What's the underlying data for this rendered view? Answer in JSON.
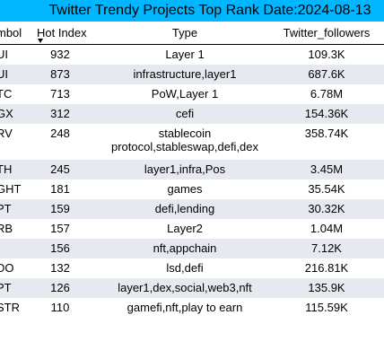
{
  "title": "Twitter Trendy Projects Top Rank Date:2024-08-13",
  "columns": {
    "symbol": "mbol",
    "hot_index": "Hot Index",
    "type": "Type",
    "followers": "Twitter_followers"
  },
  "rows": [
    {
      "symbol": "UI",
      "hot_index": "932",
      "type": "Layer 1",
      "type2": "",
      "followers": "109.3K"
    },
    {
      "symbol": "UI",
      "hot_index": "873",
      "type": "infrastructure,layer1",
      "type2": "",
      "followers": "687.6K"
    },
    {
      "symbol": "TC",
      "hot_index": "713",
      "type": "PoW,Layer 1",
      "type2": "",
      "followers": "6.78M"
    },
    {
      "symbol": "GX",
      "hot_index": "312",
      "type": "cefi",
      "type2": "",
      "followers": "154.36K"
    },
    {
      "symbol": "RV",
      "hot_index": "248",
      "type": "stablecoin",
      "type2": "protocol,stableswap,defi,dex",
      "followers": "358.74K"
    },
    {
      "symbol": "TH",
      "hot_index": "245",
      "type": "layer1,infra,Pos",
      "type2": "",
      "followers": "3.45M"
    },
    {
      "symbol": "GHT",
      "hot_index": "181",
      "type": "games",
      "type2": "",
      "followers": "35.54K"
    },
    {
      "symbol": "PT",
      "hot_index": "159",
      "type": "defi,lending",
      "type2": "",
      "followers": "30.32K"
    },
    {
      "symbol": "RB",
      "hot_index": "157",
      "type": "Layer2",
      "type2": "",
      "followers": "1.04M"
    },
    {
      "symbol": "",
      "hot_index": "156",
      "type": "nft,appchain",
      "type2": "",
      "followers": "7.12K"
    },
    {
      "symbol": "DO",
      "hot_index": "132",
      "type": "lsd,defi",
      "type2": "",
      "followers": "216.81K"
    },
    {
      "symbol": "PT",
      "hot_index": "126",
      "type": "layer1,dex,social,web3,nft",
      "type2": "",
      "followers": "135.9K"
    },
    {
      "symbol": "STR",
      "hot_index": "110",
      "type": "gamefi,nft,play to earn",
      "type2": "",
      "followers": "115.59K"
    }
  ]
}
